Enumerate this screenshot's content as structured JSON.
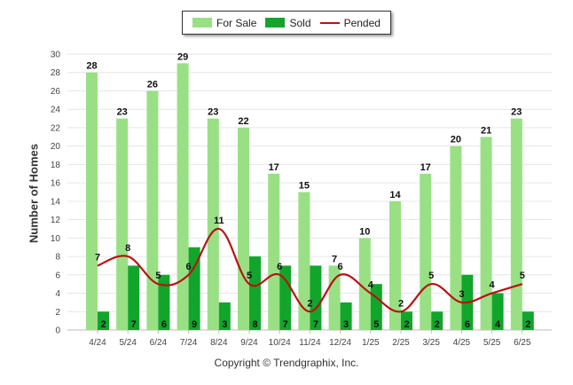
{
  "chart_data": {
    "type": "bar",
    "categories": [
      "4/24",
      "5/24",
      "6/24",
      "7/24",
      "8/24",
      "9/24",
      "10/24",
      "11/24",
      "12/24",
      "1/25",
      "2/25",
      "3/25",
      "4/25",
      "5/25",
      "6/25"
    ],
    "series": [
      {
        "name": "For Sale",
        "kind": "bar",
        "color": "#99e085",
        "values": [
          28,
          23,
          26,
          29,
          23,
          22,
          17,
          15,
          7,
          10,
          14,
          17,
          20,
          21,
          23
        ]
      },
      {
        "name": "Sold",
        "kind": "bar",
        "color": "#12a52c",
        "values": [
          2,
          7,
          6,
          9,
          3,
          8,
          7,
          7,
          3,
          5,
          2,
          2,
          6,
          4,
          2
        ]
      },
      {
        "name": "Pended",
        "kind": "line",
        "color": "#b81313",
        "values": [
          7,
          8,
          5,
          6,
          11,
          5,
          6,
          2,
          6,
          4,
          2,
          5,
          3,
          4,
          5
        ]
      }
    ],
    "ylabel": "Number of Homes",
    "xlabel": "",
    "ylim": [
      0,
      30
    ],
    "yticks": [
      0,
      2,
      4,
      6,
      8,
      10,
      12,
      14,
      16,
      18,
      20,
      22,
      24,
      26,
      28,
      30
    ],
    "grid": true,
    "legend_position": "top-center"
  },
  "footer": {
    "copyright": "Copyright © Trendgraphix, Inc."
  }
}
